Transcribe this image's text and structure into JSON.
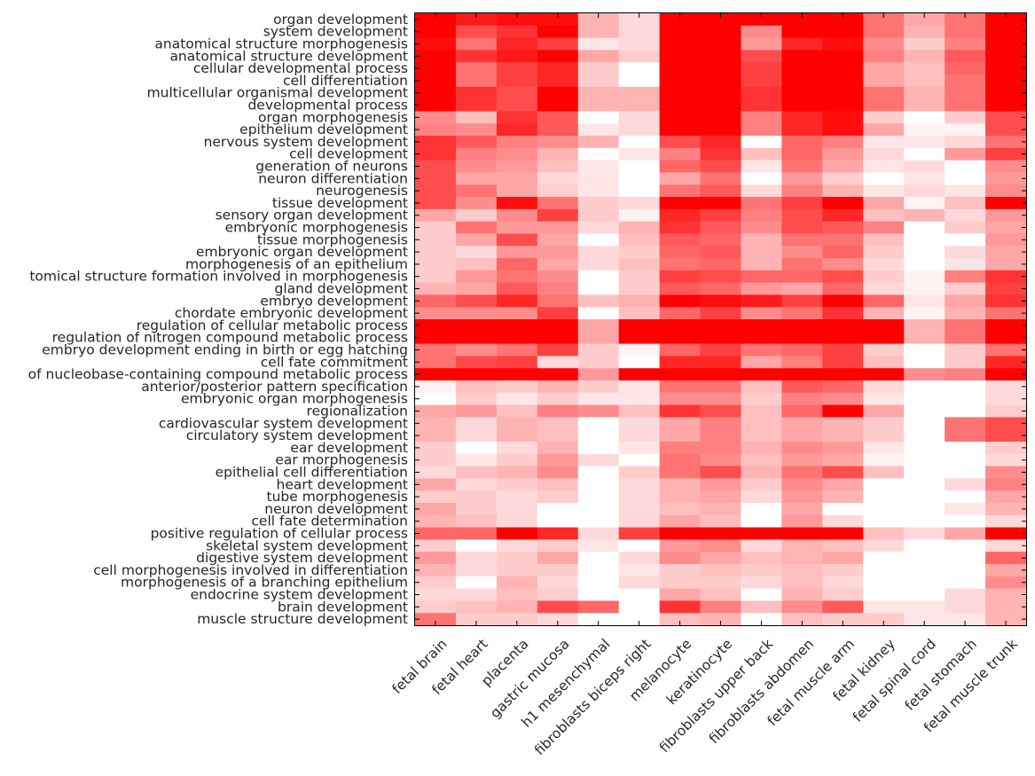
{
  "chart_data": {
    "type": "heatmap",
    "colors": {
      "low": "#ffffff",
      "high": "#ff0000",
      "tick": "#000000"
    },
    "value_range": [
      0,
      1
    ],
    "rows": [
      "organ development",
      "system development",
      "anatomical structure morphogenesis",
      "anatomical structure development",
      "cellular developmental process",
      "cell differentiation",
      "multicellular organismal development",
      "developmental process",
      "organ morphogenesis",
      "epithelium development",
      "nervous system development",
      "cell development",
      "generation of neurons",
      "neuron differentiation",
      "neurogenesis",
      "tissue development",
      "sensory organ development",
      "embryonic morphogenesis",
      "tissue morphogenesis",
      "embryonic organ development",
      "morphogenesis of an epithelium",
      "tomical structure formation involved in morphogenesis",
      "gland development",
      "embryo development",
      "chordate embryonic development",
      "regulation of cellular metabolic process",
      "regulation of nitrogen compound metabolic process",
      "embryo development ending in birth or egg hatching",
      "cell fate commitment",
      "of nucleobase-containing compound metabolic process",
      "anterior/posterior pattern specification",
      "embryonic organ morphogenesis",
      "regionalization",
      "cardiovascular system development",
      "circulatory system development",
      "ear development",
      "ear morphogenesis",
      "epithelial cell differentiation",
      "heart development",
      "tube morphogenesis",
      "neuron development",
      "cell fate determination",
      "positive regulation of cellular process",
      "skeletal system development",
      "digestive system development",
      "cell morphogenesis involved in differentiation",
      "morphogenesis of a branching epithelium",
      "endocrine system development",
      "brain development",
      "muscle structure development"
    ],
    "columns": [
      "fetal brain",
      "fetal heart",
      "placenta",
      "gastric mucosa",
      "h1 mesenchymal",
      "fibroblasts biceps right",
      "melanocyte",
      "keratinocyte",
      "fibroblasts upper back",
      "fibroblasts abdomen",
      "fetal muscle arm",
      "fetal kidney",
      "fetal spinal cord",
      "fetal stomach",
      "fetal muscle trunk"
    ],
    "values": [
      [
        1.0,
        0.9,
        0.95,
        0.95,
        0.3,
        0.15,
        1.0,
        1.0,
        1.0,
        1.0,
        1.0,
        0.55,
        0.35,
        0.55,
        1.0
      ],
      [
        1.0,
        0.7,
        0.8,
        1.0,
        0.3,
        0.15,
        1.0,
        1.0,
        0.45,
        1.0,
        1.0,
        0.55,
        0.3,
        0.55,
        1.0
      ],
      [
        0.95,
        0.55,
        0.85,
        0.75,
        0.1,
        0.15,
        1.0,
        1.0,
        0.4,
        0.85,
        0.95,
        0.45,
        0.2,
        0.5,
        1.0
      ],
      [
        1.0,
        0.8,
        0.9,
        1.0,
        0.35,
        0.2,
        1.0,
        1.0,
        0.7,
        1.0,
        1.0,
        0.5,
        0.3,
        0.65,
        1.0
      ],
      [
        1.0,
        0.55,
        0.75,
        0.85,
        0.2,
        0.0,
        1.0,
        1.0,
        0.75,
        1.0,
        1.0,
        0.35,
        0.25,
        0.6,
        1.0
      ],
      [
        1.0,
        0.55,
        0.75,
        0.85,
        0.2,
        0.0,
        1.0,
        1.0,
        0.75,
        1.0,
        1.0,
        0.35,
        0.25,
        0.55,
        1.0
      ],
      [
        1.0,
        0.8,
        0.7,
        1.0,
        0.3,
        0.3,
        1.0,
        1.0,
        0.8,
        1.0,
        1.0,
        0.55,
        0.3,
        0.55,
        1.0
      ],
      [
        1.0,
        0.8,
        0.7,
        1.0,
        0.3,
        0.3,
        1.0,
        1.0,
        0.8,
        1.0,
        1.0,
        0.55,
        0.3,
        0.55,
        1.0
      ],
      [
        0.45,
        0.25,
        0.8,
        0.65,
        0.0,
        0.15,
        1.0,
        1.0,
        0.5,
        0.85,
        0.95,
        0.2,
        0.0,
        0.2,
        0.7
      ],
      [
        0.5,
        0.45,
        0.85,
        0.65,
        0.1,
        0.15,
        1.0,
        1.0,
        0.5,
        0.85,
        0.95,
        0.35,
        0.05,
        0.05,
        0.7
      ],
      [
        0.8,
        0.65,
        0.5,
        0.45,
        0.3,
        0.0,
        0.7,
        0.85,
        0.0,
        0.6,
        0.5,
        0.1,
        0.1,
        0.15,
        0.55
      ],
      [
        0.8,
        0.5,
        0.45,
        0.3,
        0.0,
        0.1,
        0.5,
        0.8,
        0.25,
        0.6,
        0.4,
        0.15,
        0.0,
        0.4,
        0.75
      ],
      [
        0.7,
        0.45,
        0.4,
        0.25,
        0.1,
        0.0,
        0.6,
        0.7,
        0.1,
        0.55,
        0.35,
        0.1,
        0.15,
        0.0,
        0.45
      ],
      [
        0.7,
        0.35,
        0.35,
        0.15,
        0.1,
        0.0,
        0.35,
        0.55,
        0.0,
        0.4,
        0.2,
        0.0,
        0.1,
        0.0,
        0.4
      ],
      [
        0.7,
        0.55,
        0.35,
        0.2,
        0.1,
        0.0,
        0.55,
        0.65,
        0.15,
        0.5,
        0.3,
        0.1,
        0.15,
        0.1,
        0.45
      ],
      [
        0.7,
        0.45,
        0.95,
        0.55,
        0.2,
        0.15,
        1.0,
        1.0,
        0.55,
        0.75,
        1.0,
        0.35,
        0.05,
        0.25,
        1.0
      ],
      [
        0.35,
        0.2,
        0.45,
        0.75,
        0.2,
        0.05,
        0.85,
        0.75,
        0.5,
        0.7,
        0.85,
        0.25,
        0.3,
        0.15,
        0.4
      ],
      [
        0.2,
        0.55,
        0.4,
        0.4,
        0.15,
        0.3,
        0.8,
        0.65,
        0.45,
        0.7,
        0.65,
        0.5,
        0.0,
        0.2,
        0.35
      ],
      [
        0.2,
        0.35,
        0.7,
        0.35,
        0.0,
        0.25,
        0.65,
        0.6,
        0.3,
        0.55,
        0.55,
        0.25,
        0.0,
        0.0,
        0.4
      ],
      [
        0.2,
        0.15,
        0.4,
        0.4,
        0.15,
        0.2,
        0.6,
        0.65,
        0.3,
        0.45,
        0.6,
        0.2,
        0.0,
        0.15,
        0.35
      ],
      [
        0.2,
        0.25,
        0.6,
        0.35,
        0.15,
        0.25,
        0.55,
        0.6,
        0.3,
        0.55,
        0.45,
        0.15,
        0.0,
        0.1,
        0.35
      ],
      [
        0.2,
        0.4,
        0.55,
        0.45,
        0.0,
        0.2,
        0.75,
        0.7,
        0.6,
        0.6,
        0.7,
        0.2,
        0.05,
        0.5,
        0.8
      ],
      [
        0.3,
        0.35,
        0.65,
        0.5,
        0.0,
        0.2,
        0.65,
        0.6,
        0.4,
        0.35,
        0.6,
        0.15,
        0.05,
        0.2,
        0.75
      ],
      [
        0.6,
        0.7,
        0.85,
        0.55,
        0.25,
        0.3,
        1.0,
        0.95,
        0.9,
        0.75,
        1.0,
        0.6,
        0.1,
        0.35,
        0.8
      ],
      [
        0.45,
        0.45,
        0.45,
        0.75,
        0.0,
        0.25,
        0.6,
        0.75,
        0.45,
        0.55,
        0.8,
        0.3,
        0.05,
        0.3,
        0.55
      ],
      [
        1.0,
        1.0,
        1.0,
        1.0,
        0.35,
        1.0,
        1.0,
        1.0,
        1.0,
        1.0,
        1.0,
        1.0,
        0.3,
        0.55,
        1.0
      ],
      [
        1.0,
        1.0,
        1.0,
        1.0,
        0.35,
        1.0,
        1.0,
        1.0,
        1.0,
        1.0,
        1.0,
        1.0,
        0.3,
        0.55,
        1.0
      ],
      [
        0.55,
        0.45,
        0.55,
        0.75,
        0.2,
        0.05,
        0.6,
        0.75,
        0.55,
        0.6,
        0.75,
        0.2,
        0.0,
        0.2,
        0.55
      ],
      [
        0.55,
        0.7,
        0.75,
        0.15,
        0.2,
        0.0,
        0.85,
        0.85,
        0.35,
        0.5,
        0.75,
        0.25,
        0.0,
        0.2,
        0.85
      ],
      [
        1.0,
        1.0,
        1.0,
        1.0,
        0.4,
        1.0,
        1.0,
        1.0,
        1.0,
        1.0,
        1.0,
        1.0,
        0.45,
        0.5,
        1.0
      ],
      [
        0.05,
        0.25,
        0.2,
        0.3,
        0.2,
        0.1,
        0.55,
        0.55,
        0.25,
        0.65,
        0.6,
        0.15,
        0.0,
        0.0,
        0.15
      ],
      [
        0.0,
        0.2,
        0.1,
        0.2,
        0.1,
        0.1,
        0.45,
        0.45,
        0.2,
        0.5,
        0.45,
        0.1,
        0.0,
        0.0,
        0.15
      ],
      [
        0.35,
        0.4,
        0.25,
        0.5,
        0.45,
        0.25,
        0.8,
        0.7,
        0.25,
        0.6,
        1.0,
        0.35,
        0.0,
        0.0,
        0.2
      ],
      [
        0.3,
        0.15,
        0.3,
        0.25,
        0.0,
        0.15,
        0.35,
        0.5,
        0.25,
        0.35,
        0.3,
        0.2,
        0.0,
        0.55,
        0.7
      ],
      [
        0.3,
        0.15,
        0.3,
        0.25,
        0.0,
        0.15,
        0.35,
        0.5,
        0.25,
        0.35,
        0.3,
        0.2,
        0.0,
        0.55,
        0.7
      ],
      [
        0.2,
        0.0,
        0.15,
        0.3,
        0.0,
        0.1,
        0.5,
        0.5,
        0.3,
        0.45,
        0.4,
        0.1,
        0.0,
        0.0,
        0.2
      ],
      [
        0.2,
        0.1,
        0.2,
        0.4,
        0.15,
        0.0,
        0.55,
        0.45,
        0.25,
        0.4,
        0.35,
        0.05,
        0.0,
        0.0,
        0.15
      ],
      [
        0.15,
        0.25,
        0.3,
        0.45,
        0.0,
        0.2,
        0.55,
        0.7,
        0.3,
        0.55,
        0.7,
        0.25,
        0.0,
        0.0,
        0.45
      ],
      [
        0.35,
        0.15,
        0.2,
        0.25,
        0.0,
        0.15,
        0.3,
        0.4,
        0.2,
        0.45,
        0.35,
        0.0,
        0.0,
        0.15,
        0.5
      ],
      [
        0.2,
        0.2,
        0.15,
        0.2,
        0.0,
        0.15,
        0.3,
        0.35,
        0.15,
        0.4,
        0.3,
        0.0,
        0.0,
        0.0,
        0.35
      ],
      [
        0.35,
        0.2,
        0.15,
        0.0,
        0.0,
        0.15,
        0.25,
        0.3,
        0.0,
        0.35,
        0.0,
        0.0,
        0.0,
        0.1,
        0.3
      ],
      [
        0.3,
        0.25,
        0.15,
        0.0,
        0.0,
        0.15,
        0.35,
        0.25,
        0.0,
        0.4,
        0.15,
        0.0,
        0.0,
        0.0,
        0.15
      ],
      [
        0.6,
        0.6,
        1.0,
        0.85,
        0.15,
        0.75,
        1.0,
        1.0,
        1.0,
        1.0,
        1.0,
        0.25,
        0.15,
        0.35,
        1.0
      ],
      [
        0.2,
        0.0,
        0.15,
        0.2,
        0.1,
        0.0,
        0.4,
        0.45,
        0.15,
        0.3,
        0.25,
        0.15,
        0.0,
        0.0,
        0.15
      ],
      [
        0.4,
        0.15,
        0.2,
        0.35,
        0.0,
        0.15,
        0.45,
        0.35,
        0.25,
        0.3,
        0.35,
        0.0,
        0.0,
        0.0,
        0.6
      ],
      [
        0.3,
        0.15,
        0.2,
        0.2,
        0.0,
        0.1,
        0.2,
        0.25,
        0.2,
        0.25,
        0.2,
        0.0,
        0.0,
        0.0,
        0.35
      ],
      [
        0.2,
        0.0,
        0.3,
        0.15,
        0.0,
        0.15,
        0.2,
        0.2,
        0.15,
        0.25,
        0.15,
        0.0,
        0.0,
        0.0,
        0.45
      ],
      [
        0.15,
        0.15,
        0.25,
        0.2,
        0.0,
        0.0,
        0.35,
        0.25,
        0.0,
        0.3,
        0.2,
        0.0,
        0.0,
        0.15,
        0.3
      ],
      [
        0.2,
        0.25,
        0.3,
        0.7,
        0.6,
        0.0,
        0.8,
        0.5,
        0.25,
        0.45,
        0.65,
        0.1,
        0.1,
        0.15,
        0.3
      ],
      [
        0.55,
        0.2,
        0.2,
        0.15,
        0.0,
        0.0,
        0.25,
        0.3,
        0.0,
        0.25,
        0.2,
        0.2,
        0.1,
        0.1,
        0.3
      ]
    ]
  }
}
